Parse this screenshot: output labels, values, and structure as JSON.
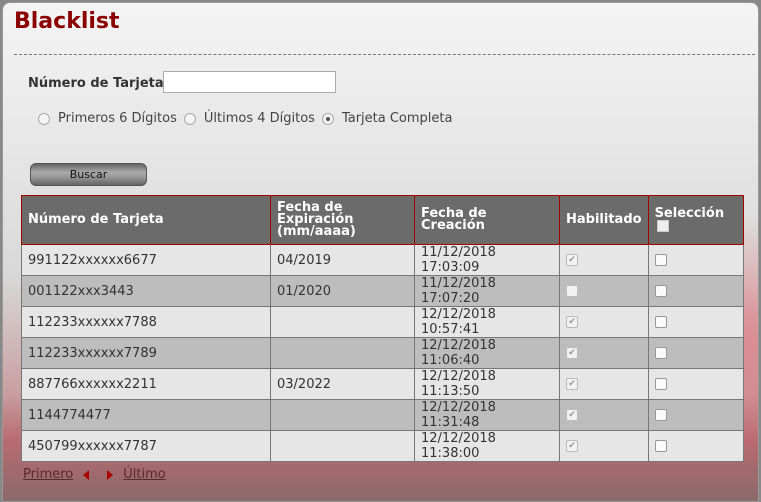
{
  "title": "Blacklist",
  "search": {
    "label": "Número de Tarjeta",
    "value": "",
    "options": [
      "Primeros 6 Dígitos",
      "Últimos 4 Dígitos",
      "Tarjeta Completa"
    ],
    "selected": "Tarjeta Completa",
    "button": "Buscar"
  },
  "table": {
    "headers": [
      "Número de Tarjeta",
      "Fecha de Expiración (mm/aaaa)",
      "Fecha de Creación",
      "Habilitado",
      "Selección"
    ],
    "rows": [
      {
        "card": "991122xxxxxx6677",
        "exp": "04/2019",
        "created": "11/12/2018 17:03:09",
        "enabled": true,
        "selected": false
      },
      {
        "card": "001122xxx3443",
        "exp": "01/2020",
        "created": "11/12/2018 17:07:20",
        "enabled": false,
        "selected": false
      },
      {
        "card": "112233xxxxxx7788",
        "exp": "",
        "created": "12/12/2018 10:57:41",
        "enabled": true,
        "selected": false
      },
      {
        "card": "112233xxxxxx7789",
        "exp": "",
        "created": "12/12/2018 11:06:40",
        "enabled": true,
        "selected": false
      },
      {
        "card": "887766xxxxxx2211",
        "exp": "03/2022",
        "created": "12/12/2018 11:13:50",
        "enabled": true,
        "selected": false
      },
      {
        "card": "1144774477",
        "exp": "",
        "created": "12/12/2018 11:31:48",
        "enabled": true,
        "selected": false
      },
      {
        "card": "450799xxxxxx7787",
        "exp": "",
        "created": "12/12/2018 11:38:00",
        "enabled": true,
        "selected": false
      }
    ]
  },
  "pager": {
    "first": "Primero",
    "last": "Último"
  }
}
